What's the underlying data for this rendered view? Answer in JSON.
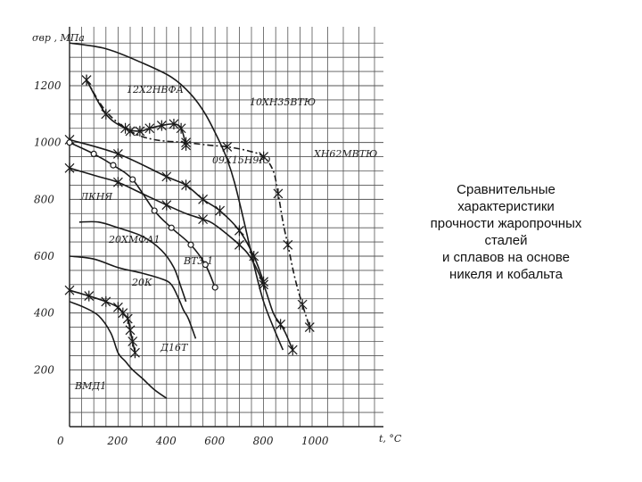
{
  "chart_data": {
    "type": "line",
    "title": "",
    "xlabel": "t, °C",
    "ylabel": "σвр , МПа",
    "xlim": [
      0,
      1000
    ],
    "ylim": [
      0,
      1350
    ],
    "x_ticks": [
      "0",
      "200",
      "400",
      "600",
      "800",
      "1000"
    ],
    "y_ticks": [
      "200",
      "400",
      "600",
      "800",
      "1000",
      "1200"
    ],
    "grid": true,
    "series": [
      {
        "name": "12Х2НВФА",
        "marker": "cross",
        "line": "solid",
        "points": [
          [
            70,
            1220
          ],
          [
            150,
            1100
          ],
          [
            230,
            1050
          ],
          [
            290,
            1040
          ],
          [
            330,
            1050
          ],
          [
            380,
            1060
          ],
          [
            430,
            1065
          ],
          [
            460,
            1050
          ],
          [
            480,
            990
          ]
        ]
      },
      {
        "name": "10ХН35ВТЮ",
        "marker": "none",
        "line": "solid",
        "points": [
          [
            0,
            1350
          ],
          [
            150,
            1330
          ],
          [
            300,
            1280
          ],
          [
            420,
            1230
          ],
          [
            500,
            1170
          ],
          [
            560,
            1100
          ],
          [
            620,
            1000
          ],
          [
            650,
            940
          ],
          [
            680,
            860
          ],
          [
            720,
            720
          ],
          [
            760,
            570
          ],
          [
            800,
            440
          ],
          [
            850,
            330
          ],
          [
            880,
            270
          ]
        ]
      },
      {
        "name": "ХН62МВТЮ",
        "marker": "cross",
        "line": "dash-dot",
        "points": [
          [
            70,
            1220
          ],
          [
            150,
            1110
          ],
          [
            250,
            1040
          ],
          [
            350,
            1010
          ],
          [
            480,
            1000
          ],
          [
            580,
            990
          ],
          [
            650,
            985
          ],
          [
            740,
            970
          ],
          [
            800,
            950
          ],
          [
            840,
            900
          ],
          [
            860,
            820
          ],
          [
            880,
            720
          ],
          [
            900,
            640
          ],
          [
            930,
            520
          ],
          [
            960,
            430
          ],
          [
            990,
            350
          ]
        ]
      },
      {
        "name": "09Х15Н9Ю",
        "marker": "cross",
        "line": "solid",
        "points": [
          [
            0,
            1010
          ],
          [
            200,
            960
          ],
          [
            400,
            880
          ],
          [
            480,
            850
          ],
          [
            550,
            800
          ],
          [
            620,
            760
          ],
          [
            700,
            690
          ],
          [
            760,
            600
          ],
          [
            800,
            510
          ]
        ]
      },
      {
        "name": "ЛКНЯ",
        "marker": "circle",
        "line": "solid",
        "points": [
          [
            0,
            1000
          ],
          [
            100,
            960
          ],
          [
            180,
            920
          ],
          [
            260,
            870
          ],
          [
            350,
            760
          ],
          [
            420,
            700
          ],
          [
            500,
            640
          ],
          [
            560,
            570
          ],
          [
            600,
            490
          ]
        ]
      },
      {
        "name": "20ХМФА1",
        "marker": "cross",
        "line": "solid",
        "points": [
          [
            0,
            910
          ],
          [
            120,
            880
          ],
          [
            200,
            860
          ],
          [
            300,
            820
          ],
          [
            400,
            780
          ],
          [
            480,
            750
          ],
          [
            550,
            730
          ],
          [
            600,
            710
          ],
          [
            700,
            640
          ],
          [
            750,
            590
          ],
          [
            800,
            500
          ],
          [
            840,
            400
          ],
          [
            870,
            360
          ],
          [
            890,
            330
          ],
          [
            920,
            270
          ]
        ]
      },
      {
        "name": "ВТ3-1",
        "marker": "none",
        "line": "solid",
        "points": [
          [
            40,
            720
          ],
          [
            120,
            720
          ],
          [
            200,
            700
          ],
          [
            300,
            670
          ],
          [
            380,
            620
          ],
          [
            430,
            560
          ],
          [
            460,
            490
          ],
          [
            480,
            440
          ]
        ]
      },
      {
        "name": "20К",
        "marker": "none",
        "line": "solid",
        "points": [
          [
            0,
            600
          ],
          [
            100,
            590
          ],
          [
            200,
            560
          ],
          [
            300,
            540
          ],
          [
            380,
            520
          ],
          [
            420,
            500
          ],
          [
            450,
            450
          ],
          [
            470,
            410
          ],
          [
            490,
            380
          ],
          [
            520,
            310
          ]
        ]
      },
      {
        "name": "Д16Т",
        "marker": "cross",
        "line": "solid",
        "points": [
          [
            0,
            480
          ],
          [
            80,
            460
          ],
          [
            150,
            440
          ],
          [
            200,
            420
          ],
          [
            220,
            400
          ],
          [
            240,
            380
          ],
          [
            250,
            340
          ],
          [
            260,
            300
          ],
          [
            270,
            260
          ]
        ]
      },
      {
        "name": "ВМД1",
        "marker": "none",
        "line": "solid",
        "points": [
          [
            0,
            440
          ],
          [
            60,
            420
          ],
          [
            120,
            390
          ],
          [
            170,
            330
          ],
          [
            200,
            260
          ],
          [
            230,
            230
          ],
          [
            260,
            200
          ],
          [
            300,
            170
          ],
          [
            350,
            130
          ],
          [
            400,
            100
          ]
        ]
      }
    ]
  },
  "caption": {
    "text": "Сравнительные\nхарактеристики\nпрочности жаропрочных\nсталей\nи сплавов на основе\nникеля и кобальта"
  },
  "style": {
    "line_color": "#1a1a1a",
    "grid_color": "#555555",
    "caption_color": "#111111"
  }
}
